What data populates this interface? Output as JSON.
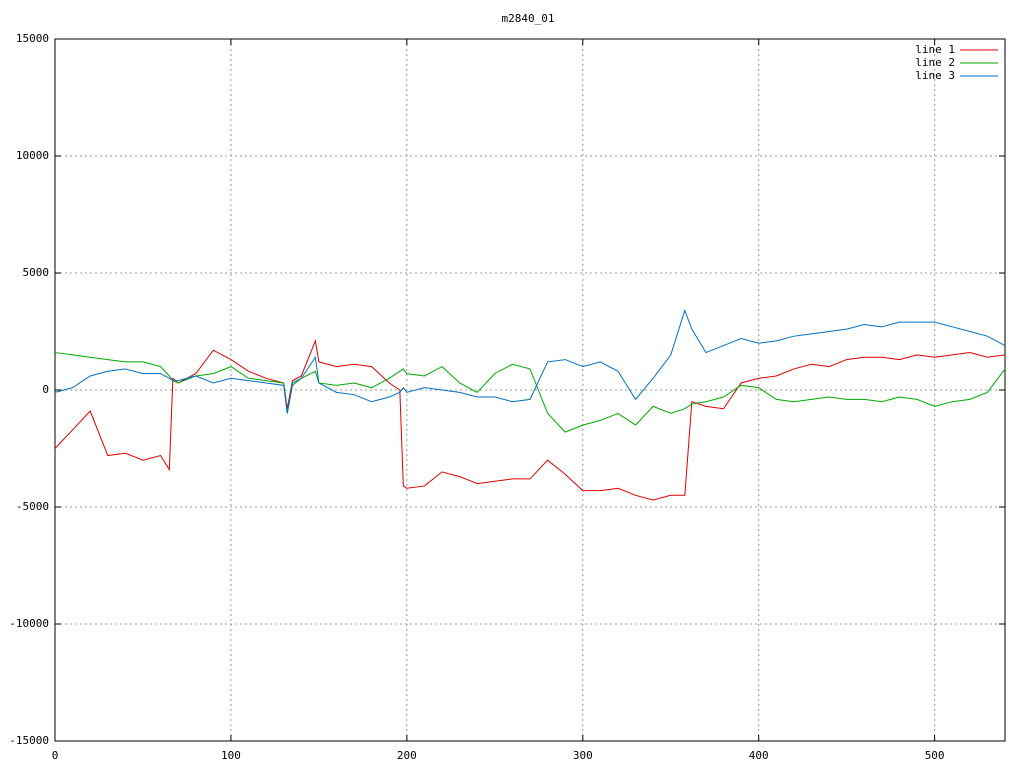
{
  "chart_data": {
    "type": "line",
    "title": "m2840_01",
    "x": [
      0,
      10,
      20,
      30,
      40,
      50,
      60,
      65,
      67,
      70,
      80,
      90,
      100,
      110,
      120,
      130,
      132,
      135,
      140,
      148,
      150,
      160,
      170,
      180,
      190,
      196,
      198,
      200,
      210,
      220,
      230,
      240,
      250,
      260,
      270,
      280,
      290,
      300,
      310,
      320,
      330,
      340,
      350,
      358,
      362,
      370,
      380,
      390,
      400,
      410,
      420,
      430,
      440,
      450,
      460,
      470,
      480,
      490,
      500,
      510,
      520,
      530,
      540
    ],
    "series": [
      {
        "name": "line 1",
        "color": "#dd0000",
        "values": [
          -2500,
          -1700,
          -900,
          -2800,
          -2700,
          -3000,
          -2800,
          -3400,
          500,
          300,
          700,
          1700,
          1300,
          800,
          500,
          300,
          -800,
          400,
          600,
          2100,
          1200,
          1000,
          1100,
          1000,
          300,
          0,
          -4100,
          -4200,
          -4100,
          -3500,
          -3700,
          -4000,
          -3900,
          -3800,
          -3800,
          -3000,
          -3600,
          -4300,
          -4300,
          -4200,
          -4500,
          -4700,
          -4500,
          -4500,
          -500,
          -700,
          -800,
          300,
          500,
          600,
          900,
          1100,
          1000,
          1300,
          1400,
          1400,
          1300,
          1500,
          1400,
          1500,
          1600,
          1400,
          1500
        ]
      },
      {
        "name": "line 2",
        "color": "#00aa00",
        "values": [
          1600,
          1500,
          1400,
          1300,
          1200,
          1200,
          1000,
          600,
          400,
          300,
          600,
          700,
          1000,
          500,
          400,
          300,
          -1000,
          200,
          500,
          800,
          300,
          200,
          300,
          100,
          500,
          800,
          900,
          700,
          600,
          1000,
          300,
          -100,
          700,
          1100,
          900,
          -1000,
          -1800,
          -1500,
          -1300,
          -1000,
          -1500,
          -700,
          -1000,
          -800,
          -600,
          -500,
          -300,
          200,
          100,
          -400,
          -500,
          -400,
          -300,
          -400,
          -400,
          -500,
          -300,
          -400,
          -700,
          -500,
          -400,
          -100,
          900
        ]
      },
      {
        "name": "line 3",
        "color": "#0070c0",
        "values": [
          -100,
          100,
          600,
          800,
          900,
          700,
          700,
          500,
          400,
          400,
          600,
          300,
          500,
          400,
          300,
          200,
          -1000,
          300,
          500,
          1400,
          300,
          -100,
          -200,
          -500,
          -300,
          -100,
          100,
          -100,
          100,
          0,
          -100,
          -300,
          -300,
          -500,
          -400,
          1200,
          1300,
          1000,
          1200,
          800,
          -400,
          500,
          1500,
          3400,
          2600,
          1600,
          1900,
          2200,
          2000,
          2100,
          2300,
          2400,
          2500,
          2600,
          2800,
          2700,
          2900,
          2900,
          2900,
          2700,
          2500,
          2300,
          1900
        ]
      }
    ],
    "xlim": [
      0,
      540
    ],
    "xticks": [
      0,
      100,
      200,
      300,
      400,
      500
    ],
    "ylim": [
      -15000,
      15000
    ],
    "yticks": [
      -15000,
      -10000,
      -5000,
      0,
      5000,
      10000,
      15000
    ],
    "grid": true,
    "legend": "top-right"
  }
}
